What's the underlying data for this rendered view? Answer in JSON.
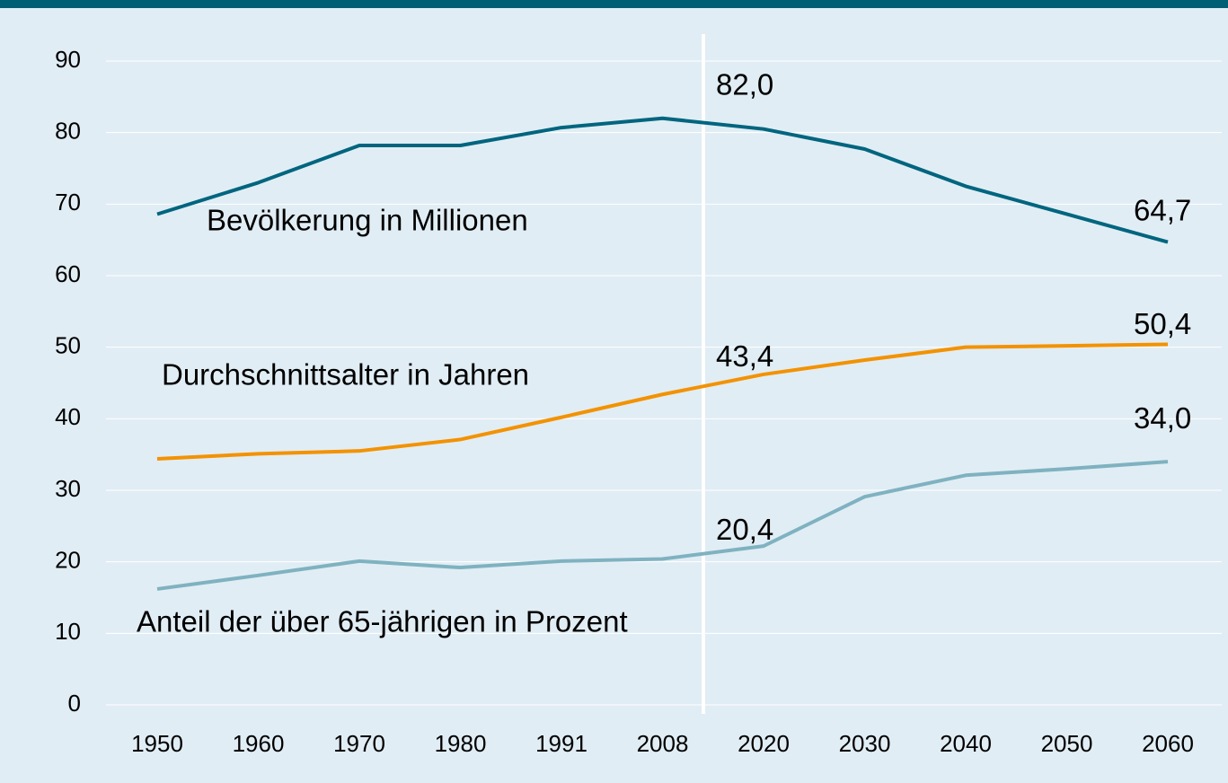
{
  "chart_data": {
    "type": "line",
    "categories": [
      "1950",
      "1960",
      "1970",
      "1980",
      "1991",
      "2008",
      "2020",
      "2030",
      "2040",
      "2050",
      "2060"
    ],
    "series": [
      {
        "name": "Bevölkerung in Millionen",
        "color": "#00657f",
        "values": [
          68.6,
          73.0,
          78.2,
          78.2,
          80.7,
          82.0,
          80.5,
          77.7,
          72.5,
          68.6,
          64.7
        ],
        "value_labels": [
          null,
          null,
          null,
          null,
          null,
          "82,0",
          null,
          null,
          null,
          null,
          "64,7"
        ]
      },
      {
        "name": "Durchschnittsalter in Jahren",
        "color": "#f39200",
        "values": [
          34.4,
          35.1,
          35.5,
          37.1,
          40.2,
          43.4,
          46.2,
          48.2,
          50.0,
          50.2,
          50.4
        ],
        "value_labels": [
          null,
          null,
          null,
          null,
          null,
          "43,4",
          null,
          null,
          null,
          null,
          "50,4"
        ]
      },
      {
        "name": "Anteil der über 65-jährigen in Prozent",
        "color": "#7fb2c1",
        "values": [
          16.2,
          18.1,
          20.1,
          19.2,
          20.1,
          20.4,
          22.2,
          29.1,
          32.1,
          33.0,
          34.0
        ],
        "value_labels": [
          null,
          null,
          null,
          null,
          null,
          "20,4",
          null,
          null,
          null,
          null,
          "34,0"
        ]
      }
    ],
    "ylim": [
      0,
      90
    ],
    "yticks": [
      0,
      10,
      20,
      30,
      40,
      50,
      60,
      70,
      80,
      90
    ],
    "grid": true
  }
}
